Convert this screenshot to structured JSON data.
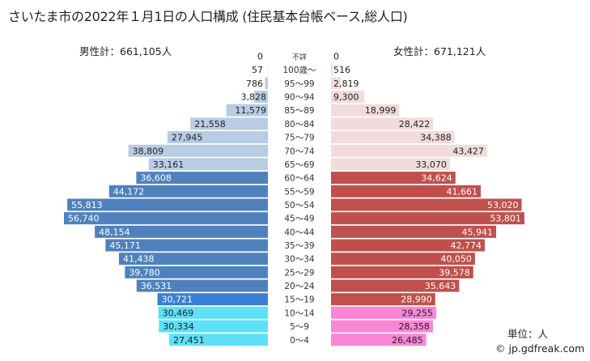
{
  "title": "さいたま市の2022年１月1日の人口構成 (住民基本台帳ベース,総人口)",
  "male_total_label": "男性計：661,105人",
  "female_total_label": "女性計：671,121人",
  "unit_label": "単位：人",
  "copyright": "© jp.gdfreak.com",
  "colors": {
    "male_elderly": "#b8cce4",
    "male_working": "#4f81bd",
    "male_youth15": "#3a7fd5",
    "male_child": "#5ce1f7",
    "female_elderly": "#f2dcdb",
    "female_working": "#c0504d",
    "female_child": "#f986d6"
  },
  "chart_data": {
    "type": "bar",
    "subtype": "population-pyramid",
    "title": "さいたま市の2022年１月1日の人口構成 (住民基本台帳ベース,総人口)",
    "unit": "人",
    "categories": [
      "不詳",
      "100歳～",
      "95～99",
      "90～94",
      "85～89",
      "80～84",
      "75～79",
      "70～74",
      "65～69",
      "60～64",
      "55～59",
      "50～54",
      "45～49",
      "40～44",
      "35～39",
      "30～34",
      "25～29",
      "20～24",
      "15～19",
      "10～14",
      "5～9",
      "0～4"
    ],
    "groups": [
      "unknown",
      "elderly",
      "elderly",
      "elderly",
      "elderly",
      "elderly",
      "elderly",
      "elderly",
      "elderly",
      "working",
      "working",
      "working",
      "working",
      "working",
      "working",
      "working",
      "working",
      "working",
      "youth15",
      "child",
      "child",
      "child"
    ],
    "series": [
      {
        "name": "男性",
        "total": 661105,
        "values": [
          0,
          57,
          786,
          3828,
          11579,
          21558,
          27945,
          38809,
          33161,
          36608,
          44172,
          55813,
          56740,
          48154,
          45171,
          41438,
          39780,
          36531,
          30721,
          30469,
          30334,
          27451
        ],
        "labels": [
          "0",
          "57",
          "786",
          "3,828",
          "11,579",
          "21,558",
          "27,945",
          "38,809",
          "33,161",
          "36,608",
          "44,172",
          "55,813",
          "56,740",
          "48,154",
          "45,171",
          "41,438",
          "39,780",
          "36,531",
          "30,721",
          "30,469",
          "30,334",
          "27,451"
        ]
      },
      {
        "name": "女性",
        "total": 671121,
        "values": [
          0,
          516,
          2819,
          9300,
          18999,
          28422,
          34388,
          43427,
          33070,
          34624,
          41661,
          53020,
          53801,
          45941,
          42774,
          40050,
          39578,
          35643,
          28990,
          29255,
          28358,
          26485
        ],
        "labels": [
          "0",
          "516",
          "2,819",
          "9,300",
          "18,999",
          "28,422",
          "34,388",
          "43,427",
          "33,070",
          "34,624",
          "41,661",
          "53,020",
          "53,801",
          "45,941",
          "42,774",
          "40,050",
          "39,578",
          "35,643",
          "28,990",
          "29,255",
          "28,358",
          "26,485"
        ]
      }
    ],
    "xlim": [
      0,
      57000
    ],
    "grid": false,
    "legend": "none"
  }
}
